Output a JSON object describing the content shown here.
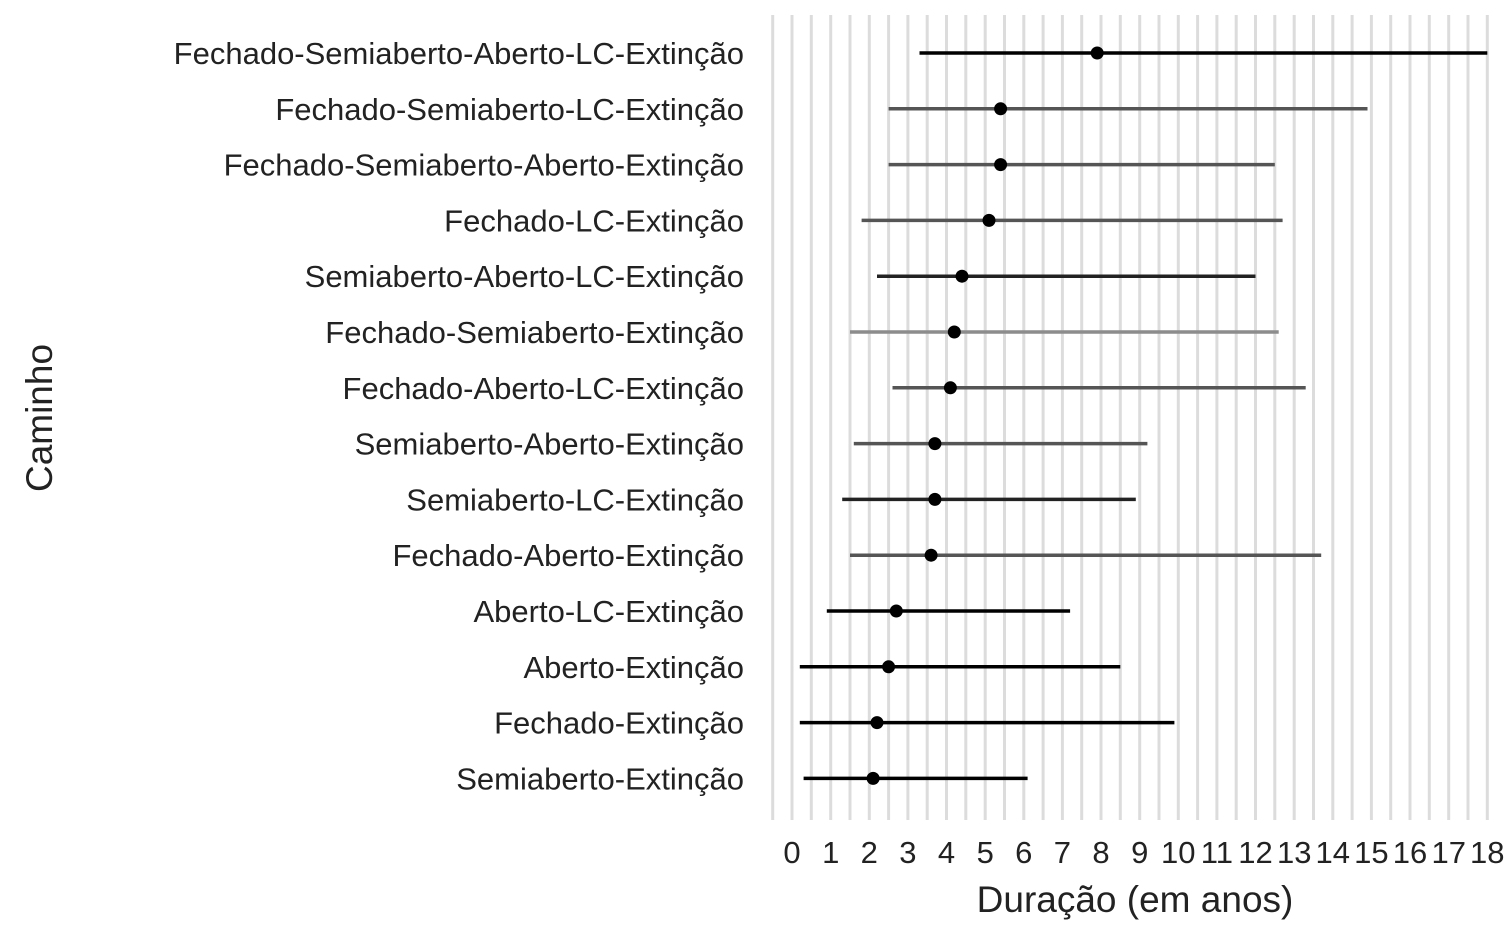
{
  "chart_data": {
    "type": "dot-interval",
    "title": "",
    "xlabel": "Duração (em anos)",
    "ylabel": "Caminho",
    "xlim": [
      -0.7,
      18.2
    ],
    "x_ticks": [
      0,
      1,
      2,
      3,
      4,
      5,
      6,
      7,
      8,
      9,
      10,
      11,
      12,
      13,
      14,
      15,
      16,
      17,
      18
    ],
    "grid": "vertical",
    "legend": "none",
    "categories": [
      "Fechado-Semiaberto-Aberto-LC-Extinção",
      "Fechado-Semiaberto-LC-Extinção",
      "Fechado-Semiaberto-Aberto-Extinção",
      "Fechado-LC-Extinção",
      "Semiaberto-Aberto-LC-Extinção",
      "Fechado-Semiaberto-Extinção",
      "Fechado-Aberto-LC-Extinção",
      "Semiaberto-Aberto-Extinção",
      "Semiaberto-LC-Extinção",
      "Fechado-Aberto-Extinção",
      "Aberto-LC-Extinção",
      "Aberto-Extinção",
      "Fechado-Extinção",
      "Semiaberto-Extinção"
    ],
    "estimates": [
      7.9,
      5.4,
      5.4,
      5.1,
      4.4,
      4.2,
      4.1,
      3.7,
      3.7,
      3.6,
      2.7,
      2.5,
      2.2,
      2.1
    ],
    "lower": [
      3.3,
      2.5,
      2.5,
      1.8,
      2.2,
      1.5,
      2.6,
      1.6,
      1.3,
      1.5,
      0.9,
      0.2,
      0.2,
      0.3
    ],
    "upper": [
      18.0,
      14.9,
      12.5,
      12.7,
      12.0,
      12.6,
      13.3,
      9.2,
      8.9,
      13.7,
      7.2,
      8.5,
      9.9,
      6.1
    ],
    "line_colors": [
      "#000000",
      "#555555",
      "#555555",
      "#555555",
      "#222222",
      "#8c8c8c",
      "#555555",
      "#555555",
      "#222222",
      "#555555",
      "#000000",
      "#000000",
      "#000000",
      "#000000"
    ]
  }
}
